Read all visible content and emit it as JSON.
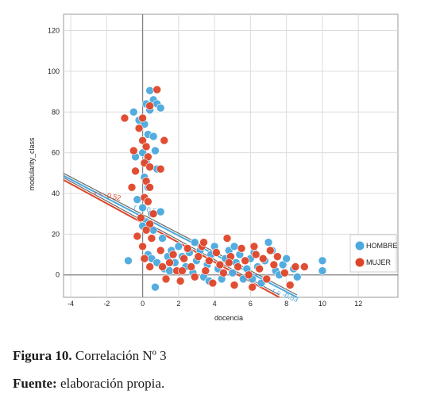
{
  "chart_data": {
    "type": "scatter",
    "title": "",
    "xlabel": "docencia",
    "ylabel": "modularity_class",
    "xlim": [
      -4.4,
      14.2
    ],
    "ylim": [
      -11,
      128
    ],
    "x_ticks": [
      -4,
      -2,
      0,
      2,
      4,
      6,
      8,
      10,
      12
    ],
    "y_ticks": [
      0,
      20,
      40,
      60,
      80,
      100,
      120
    ],
    "grid": true,
    "legend_position": "right",
    "series": [
      {
        "name": "HOMBRE",
        "color": "#4aa9dd",
        "fit": {
          "r_label": "r = -0.53",
          "slope": -4.6,
          "intercept": 28.5
        },
        "points": [
          [
            0.4,
            90.5
          ],
          [
            0.6,
            86
          ],
          [
            0.8,
            84
          ],
          [
            1.0,
            82
          ],
          [
            0.2,
            84
          ],
          [
            0.4,
            81
          ],
          [
            -0.5,
            80
          ],
          [
            -0.2,
            76
          ],
          [
            0.1,
            74
          ],
          [
            0.3,
            69
          ],
          [
            0.6,
            68
          ],
          [
            0.7,
            61
          ],
          [
            0.0,
            60
          ],
          [
            -0.4,
            58
          ],
          [
            0.2,
            56
          ],
          [
            0.8,
            52
          ],
          [
            0.1,
            48
          ],
          [
            0.3,
            43
          ],
          [
            -0.3,
            37
          ],
          [
            0.0,
            33
          ],
          [
            0.5,
            30
          ],
          [
            1.0,
            31
          ],
          [
            0.2,
            26
          ],
          [
            0.0,
            24
          ],
          [
            0.6,
            22
          ],
          [
            1.1,
            18
          ],
          [
            -0.8,
            7
          ],
          [
            0.3,
            10
          ],
          [
            0.5,
            8
          ],
          [
            0.8,
            6
          ],
          [
            1.2,
            3
          ],
          [
            1.4,
            9
          ],
          [
            1.6,
            12
          ],
          [
            1.8,
            6
          ],
          [
            2.0,
            14
          ],
          [
            2.2,
            9
          ],
          [
            2.4,
            4
          ],
          [
            2.6,
            11
          ],
          [
            2.8,
            1
          ],
          [
            3.0,
            7
          ],
          [
            3.2,
            12
          ],
          [
            3.4,
            -1
          ],
          [
            3.6,
            5
          ],
          [
            3.8,
            10
          ],
          [
            4.0,
            14
          ],
          [
            4.2,
            3
          ],
          [
            4.4,
            -2
          ],
          [
            4.6,
            8
          ],
          [
            4.8,
            12
          ],
          [
            5.0,
            1
          ],
          [
            5.2,
            6
          ],
          [
            5.4,
            10
          ],
          [
            5.6,
            -2
          ],
          [
            5.8,
            3
          ],
          [
            6.0,
            8
          ],
          [
            6.2,
            11
          ],
          [
            6.4,
            4
          ],
          [
            6.6,
            -4
          ],
          [
            6.8,
            7
          ],
          [
            7.0,
            16
          ],
          [
            7.2,
            12
          ],
          [
            7.4,
            2
          ],
          [
            7.6,
            0
          ],
          [
            7.8,
            5
          ],
          [
            8.0,
            8
          ],
          [
            8.4,
            3
          ],
          [
            8.6,
            -1
          ],
          [
            10.0,
            7
          ],
          [
            10.0,
            2
          ],
          [
            0.7,
            -6
          ],
          [
            1.5,
            2
          ],
          [
            2.9,
            16
          ],
          [
            3.7,
            -3
          ],
          [
            5.1,
            14
          ],
          [
            6.1,
            -2
          ]
        ]
      },
      {
        "name": "MUJER",
        "color": "#e04428",
        "fit": {
          "r_label": "r = -0.52",
          "slope": -4.8,
          "intercept": 25.5
        },
        "points": [
          [
            0.8,
            91
          ],
          [
            0.4,
            83
          ],
          [
            -1.0,
            77
          ],
          [
            0.0,
            77
          ],
          [
            -0.2,
            72
          ],
          [
            0.0,
            66
          ],
          [
            1.2,
            66
          ],
          [
            0.2,
            63
          ],
          [
            -0.5,
            61
          ],
          [
            0.3,
            58
          ],
          [
            0.1,
            55
          ],
          [
            0.4,
            53
          ],
          [
            1.0,
            52
          ],
          [
            -0.4,
            51
          ],
          [
            0.2,
            46
          ],
          [
            0.4,
            43
          ],
          [
            -0.6,
            43
          ],
          [
            0.1,
            38
          ],
          [
            0.3,
            36
          ],
          [
            0.6,
            30
          ],
          [
            -0.1,
            28
          ],
          [
            0.4,
            25
          ],
          [
            0.2,
            22
          ],
          [
            -0.3,
            19
          ],
          [
            0.5,
            18
          ],
          [
            0.0,
            14
          ],
          [
            0.1,
            8
          ],
          [
            0.4,
            4
          ],
          [
            1.0,
            12
          ],
          [
            1.3,
            -2
          ],
          [
            1.5,
            6
          ],
          [
            1.7,
            10
          ],
          [
            1.9,
            2
          ],
          [
            2.1,
            -3
          ],
          [
            2.3,
            8
          ],
          [
            2.5,
            13
          ],
          [
            2.7,
            4
          ],
          [
            2.9,
            -1
          ],
          [
            3.1,
            9
          ],
          [
            3.3,
            14
          ],
          [
            3.5,
            2
          ],
          [
            3.7,
            7
          ],
          [
            3.9,
            -4
          ],
          [
            4.1,
            11
          ],
          [
            4.3,
            5
          ],
          [
            4.5,
            1
          ],
          [
            4.7,
            18
          ],
          [
            4.9,
            9
          ],
          [
            5.1,
            -5
          ],
          [
            5.3,
            4
          ],
          [
            5.5,
            13
          ],
          [
            5.7,
            7
          ],
          [
            5.9,
            0
          ],
          [
            6.1,
            -6
          ],
          [
            6.3,
            10
          ],
          [
            6.5,
            3
          ],
          [
            6.7,
            8
          ],
          [
            6.9,
            -2
          ],
          [
            7.1,
            12
          ],
          [
            7.3,
            5
          ],
          [
            7.5,
            9
          ],
          [
            7.9,
            1
          ],
          [
            8.2,
            -5
          ],
          [
            8.5,
            4
          ],
          [
            9.0,
            4
          ],
          [
            1.1,
            4
          ],
          [
            2.2,
            2
          ],
          [
            3.4,
            16
          ],
          [
            4.8,
            6
          ],
          [
            6.2,
            14
          ]
        ]
      }
    ]
  },
  "caption": {
    "figure_bold": "Figura 10.",
    "figure_text": " Correlación Nº 3",
    "source_bold": "Fuente:",
    "source_text": " elaboración propia."
  }
}
